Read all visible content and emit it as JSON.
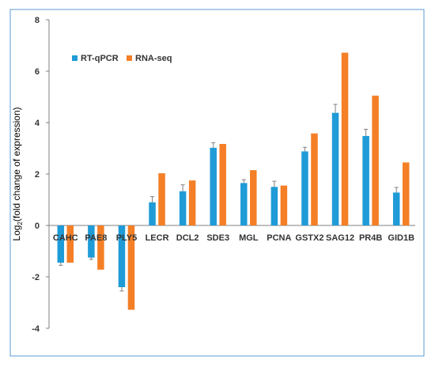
{
  "chart_data": {
    "type": "bar",
    "categories": [
      "CAHC",
      "PAE8",
      "PLY5",
      "LECR",
      "DCL2",
      "SDE3",
      "MGL",
      "PCNA",
      "GSTX2",
      "SAG12",
      "PR4B",
      "GID1B"
    ],
    "series": [
      {
        "name": "RT-qPCR",
        "color": "#1f9bd7",
        "values": [
          -1.45,
          -1.25,
          -2.4,
          0.9,
          1.33,
          3.02,
          1.65,
          1.5,
          2.88,
          4.38,
          3.48,
          1.28
        ],
        "errors": [
          0.1,
          0.07,
          0.15,
          0.22,
          0.25,
          0.2,
          0.13,
          0.22,
          0.16,
          0.33,
          0.26,
          0.2
        ]
      },
      {
        "name": "RNA-seq",
        "color": "#f47f26",
        "values": [
          -1.45,
          -1.72,
          -3.28,
          2.03,
          1.75,
          3.17,
          2.15,
          1.55,
          3.58,
          6.72,
          5.05,
          2.45
        ]
      }
    ],
    "title": "",
    "xlabel": "",
    "ylabel_prefix": "Log",
    "ylabel_sub": "2",
    "ylabel_suffix": "(fold change of expression)",
    "ylim": [
      -4,
      8
    ],
    "yticks": [
      "-4",
      "-2",
      "0",
      "2",
      "4",
      "6",
      "8"
    ],
    "grid": false,
    "legend_position": "top-left"
  }
}
